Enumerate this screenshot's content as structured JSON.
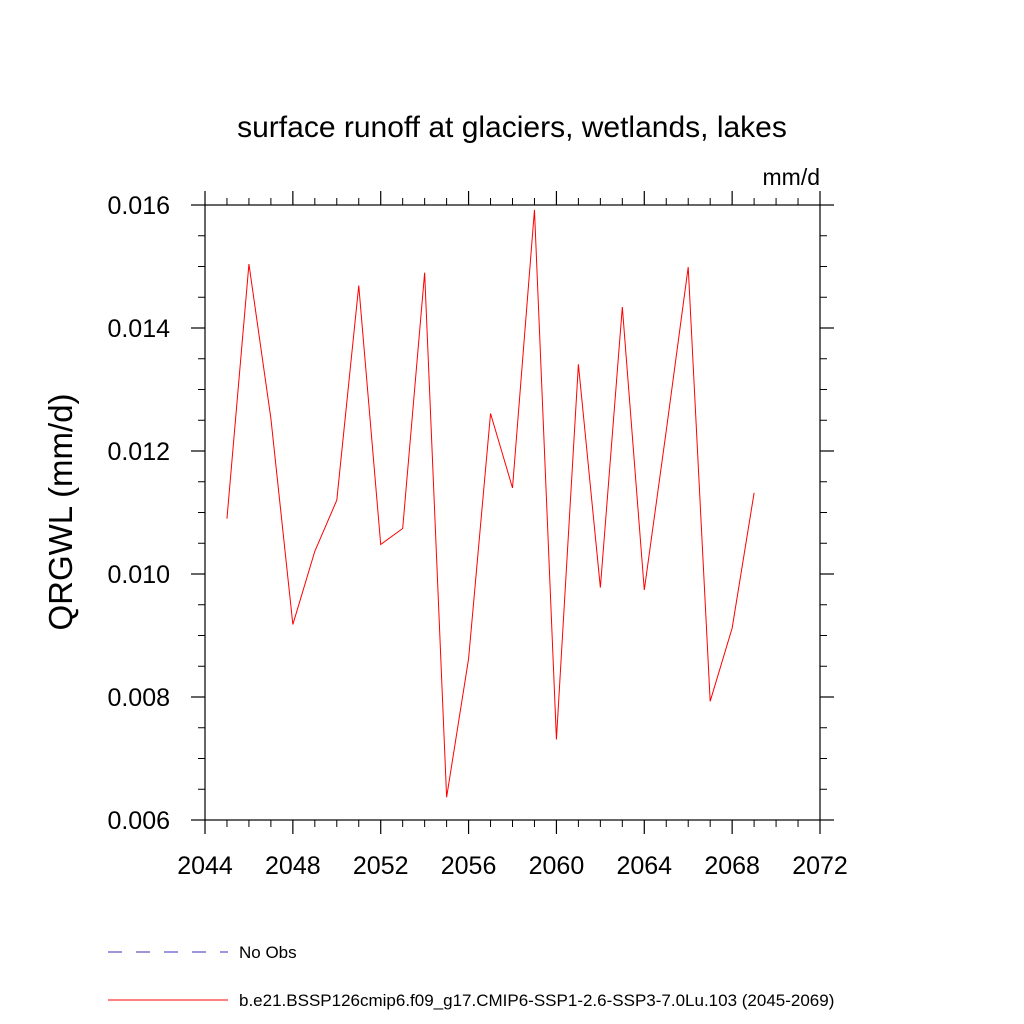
{
  "chart_data": {
    "type": "line",
    "title": "surface runoff at glaciers, wetlands, lakes",
    "units": "mm/d",
    "xlabel": "",
    "ylabel": "QRGWL  (mm/d)",
    "xlim": [
      2044,
      2072
    ],
    "ylim": [
      0.006,
      0.016
    ],
    "x_ticks": [
      2044,
      2048,
      2052,
      2056,
      2060,
      2064,
      2068,
      2072
    ],
    "x_tick_labels": [
      "2044",
      "2048",
      "2052",
      "2056",
      "2060",
      "2064",
      "2068",
      "2072"
    ],
    "y_ticks": [
      0.006,
      0.008,
      0.01,
      0.012,
      0.014,
      0.016
    ],
    "y_tick_labels": [
      "0.006",
      "0.008",
      "0.010",
      "0.012",
      "0.014",
      "0.016"
    ],
    "x_minor_step": 1,
    "y_minor_step": 0.0005,
    "grid": false,
    "legend_position": "bottom",
    "series": [
      {
        "name": "b.e21.BSSP126cmip6.f09_g17.CMIP6-SSP1-2.6-SSP3-7.0Lu.103 (2045-2069)",
        "color": "#ff0000",
        "style": "solid",
        "x": [
          2045,
          2046,
          2047,
          2048,
          2049,
          2050,
          2051,
          2052,
          2053,
          2054,
          2055,
          2056,
          2057,
          2058,
          2059,
          2060,
          2061,
          2062,
          2063,
          2064,
          2065,
          2066,
          2067,
          2068,
          2069
        ],
        "values": [
          0.0109,
          0.01504,
          0.01253,
          0.00918,
          0.01037,
          0.0112,
          0.01469,
          0.01048,
          0.01074,
          0.0149,
          0.00637,
          0.00862,
          0.01261,
          0.0114,
          0.01592,
          0.00731,
          0.01341,
          0.00978,
          0.01434,
          0.00974,
          0.01233,
          0.01499,
          0.00793,
          0.00912,
          0.01132
        ]
      }
    ],
    "legend": [
      {
        "label": "No Obs",
        "color": "#3a2db5",
        "style": "dashed"
      },
      {
        "label": "b.e21.BSSP126cmip6.f09_g17.CMIP6-SSP1-2.6-SSP3-7.0Lu.103 (2045-2069)",
        "color": "#ff0000",
        "style": "solid"
      }
    ]
  }
}
